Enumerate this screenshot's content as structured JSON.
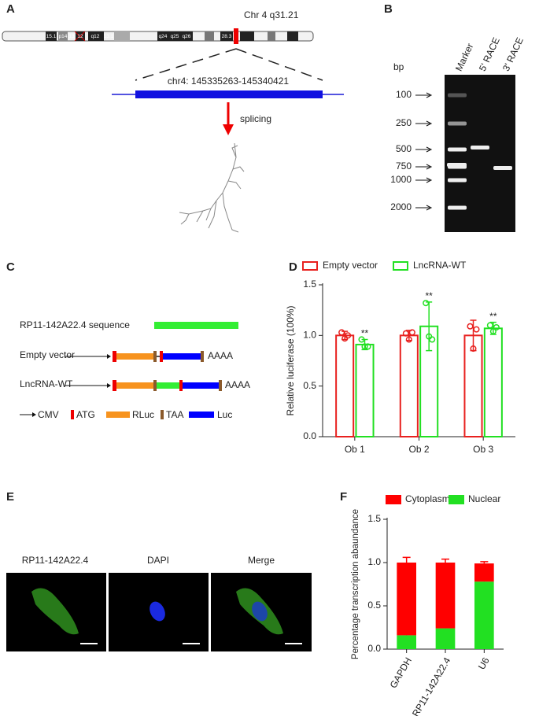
{
  "panel_a": {
    "label": "A",
    "chromosome": "Chr 4 q31.21",
    "bands": [
      "15.1",
      "p14",
      "13",
      "12",
      "q12",
      "13.1",
      "q24",
      "q25",
      "q26",
      "28.3"
    ],
    "region": "chr4: 145335263-145340421",
    "step": "splicing"
  },
  "panel_b": {
    "label": "B",
    "unit": "bp",
    "lanes": [
      "Marker",
      "5' RACE",
      "3' RACE"
    ],
    "sizes": [
      100,
      250,
      500,
      750,
      1000,
      2000
    ]
  },
  "panel_c": {
    "label": "C",
    "sequence": "RP11-142A22.4 sequence",
    "constructs": [
      "Empty vector",
      "LncRNA-WT"
    ],
    "tail": "AAAA",
    "legend": [
      "CMV",
      "ATG",
      "RLuc",
      "TAA",
      "Luc"
    ]
  },
  "panel_e": {
    "label": "E",
    "images": [
      "RP11-142A22.4",
      "DAPI",
      "Merge"
    ]
  },
  "chart_data": [
    {
      "type": "bar",
      "label": "D",
      "ylabel": "Relative luciferase (100%)",
      "hollow": true,
      "categories": [
        "Ob 1",
        "Ob 2",
        "Ob 3"
      ],
      "ylim": [
        0,
        1.5
      ],
      "yticks": [
        {
          "value": 0,
          "label": "0.0"
        },
        0.5,
        {
          "value": 1,
          "label": "1.0"
        },
        1.5
      ],
      "series": [
        {
          "name": "Empty vector",
          "color": "#e8211f",
          "values": [
            1.0,
            1.0,
            1.0
          ],
          "errors": [
            0.04,
            0.05,
            0.15
          ],
          "points": [
            [
              1.03,
              0.97,
              1.0
            ],
            [
              1.02,
              0.96,
              1.03
            ],
            [
              1.09,
              0.87,
              1.06
            ]
          ]
        },
        {
          "name": "LncRNA-WT",
          "color": "#22e022",
          "values": [
            0.91,
            1.09,
            1.07
          ],
          "errors": [
            0.05,
            0.24,
            0.06
          ],
          "points": [
            [
              0.96,
              0.89,
              0.89
            ],
            [
              1.32,
              0.99,
              0.96
            ],
            [
              1.1,
              1.04,
              1.08
            ]
          ],
          "annotations": [
            "**",
            "**",
            "**"
          ]
        }
      ]
    },
    {
      "type": "stacked_bar",
      "label": "F",
      "ylabel": "Percentage transcription abaundance",
      "categories": [
        "GAPDH",
        "RP11-142A22.4",
        "U6"
      ],
      "ylim": [
        0,
        1.5
      ],
      "yticks": [
        {
          "value": 0,
          "label": "0.0"
        },
        0.5,
        {
          "value": 1,
          "label": "1.0"
        },
        1.5
      ],
      "series": [
        {
          "name": "Cytoplasm",
          "color": "#ff0000",
          "values": [
            0.84,
            0.76,
            0.21
          ],
          "errors": [
            0.06,
            0.04,
            0.02
          ]
        },
        {
          "name": "Nuclear",
          "color": "#22e022",
          "values": [
            0.16,
            0.24,
            0.78
          ],
          "errors": [
            0.01,
            0.03,
            0.02
          ]
        }
      ]
    }
  ]
}
